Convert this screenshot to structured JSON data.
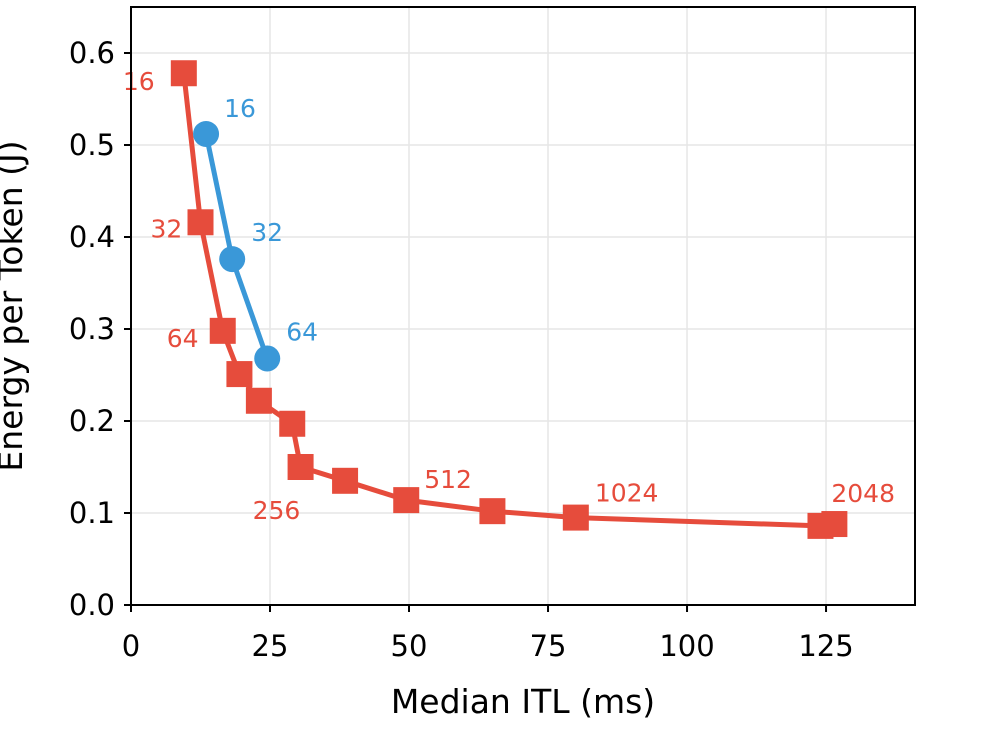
{
  "chart_data": {
    "type": "line",
    "title": "",
    "xlabel": "Median ITL (ms)",
    "ylabel": "Energy per Token (J)",
    "xlim": [
      0,
      141
    ],
    "ylim": [
      0,
      0.65
    ],
    "xticks": [
      0,
      25,
      50,
      75,
      100,
      125
    ],
    "yticks": [
      0.0,
      0.1,
      0.2,
      0.3,
      0.4,
      0.5,
      0.6
    ],
    "xtick_labels": [
      "0",
      "25",
      "50",
      "75",
      "100",
      "125"
    ],
    "ytick_labels": [
      "0.0",
      "0.1",
      "0.2",
      "0.3",
      "0.4",
      "0.5",
      "0.6"
    ],
    "grid": true,
    "series": [
      {
        "name": "blue",
        "color": "#3a98d8",
        "marker": "circle",
        "x": [
          13.5,
          18.2,
          24.5
        ],
        "y": [
          0.512,
          0.376,
          0.268
        ],
        "labels": [
          {
            "index": 0,
            "text": "16"
          },
          {
            "index": 1,
            "text": "32"
          },
          {
            "index": 2,
            "text": "64"
          }
        ]
      },
      {
        "name": "red",
        "color": "#e64c3c",
        "marker": "square",
        "x": [
          9.5,
          12.5,
          16.5,
          19.5,
          23,
          29,
          30.5,
          38.5,
          49.5,
          65,
          80,
          124,
          126.5
        ],
        "y": [
          0.578,
          0.416,
          0.298,
          0.251,
          0.222,
          0.197,
          0.15,
          0.135,
          0.114,
          0.102,
          0.095,
          0.086,
          0.088
        ],
        "labels": [
          {
            "index": 0,
            "text": "16"
          },
          {
            "index": 1,
            "text": "32"
          },
          {
            "index": 2,
            "text": "64"
          },
          {
            "index": 6,
            "text": "256"
          },
          {
            "index": 8,
            "text": "512"
          },
          {
            "index": 10,
            "text": "1024"
          },
          {
            "index": 12,
            "text": "2048"
          }
        ]
      }
    ]
  }
}
